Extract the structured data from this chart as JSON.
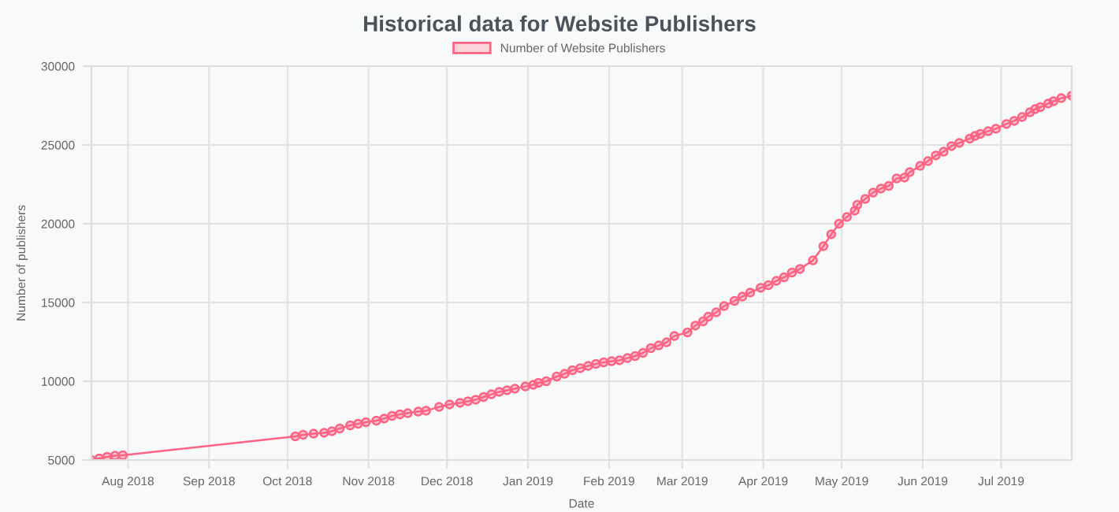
{
  "chart_data": {
    "type": "line",
    "title": "Historical data for Website Publishers",
    "xlabel": "Date",
    "ylabel": "Number of publishers",
    "x": [
      "2018-07-18",
      "2018-07-21",
      "2018-07-24",
      "2018-07-27",
      "2018-07-30",
      "2018-10-04",
      "2018-10-07",
      "2018-10-11",
      "2018-10-15",
      "2018-10-18",
      "2018-10-21",
      "2018-10-25",
      "2018-10-28",
      "2018-10-31",
      "2018-11-04",
      "2018-11-07",
      "2018-11-10",
      "2018-11-13",
      "2018-11-16",
      "2018-11-20",
      "2018-11-23",
      "2018-11-28",
      "2018-12-02",
      "2018-12-06",
      "2018-12-09",
      "2018-12-12",
      "2018-12-15",
      "2018-12-18",
      "2018-12-21",
      "2018-12-24",
      "2018-12-27",
      "2018-12-31",
      "2019-01-03",
      "2019-01-05",
      "2019-01-08",
      "2019-01-12",
      "2019-01-15",
      "2019-01-18",
      "2019-01-21",
      "2019-01-24",
      "2019-01-27",
      "2019-01-30",
      "2019-02-02",
      "2019-02-05",
      "2019-02-08",
      "2019-02-11",
      "2019-02-14",
      "2019-02-17",
      "2019-02-20",
      "2019-02-23",
      "2019-02-26",
      "2019-03-03",
      "2019-03-06",
      "2019-03-09",
      "2019-03-11",
      "2019-03-14",
      "2019-03-17",
      "2019-03-21",
      "2019-03-24",
      "2019-03-27",
      "2019-03-31",
      "2019-04-03",
      "2019-04-06",
      "2019-04-09",
      "2019-04-12",
      "2019-04-15",
      "2019-04-20",
      "2019-04-24",
      "2019-04-27",
      "2019-04-30",
      "2019-05-03",
      "2019-05-06",
      "2019-05-07",
      "2019-05-10",
      "2019-05-13",
      "2019-05-16",
      "2019-05-19",
      "2019-05-22",
      "2019-05-25",
      "2019-05-27",
      "2019-05-31",
      "2019-06-03",
      "2019-06-06",
      "2019-06-09",
      "2019-06-12",
      "2019-06-15",
      "2019-06-19",
      "2019-06-21",
      "2019-06-23",
      "2019-06-26",
      "2019-06-29",
      "2019-07-03",
      "2019-07-06",
      "2019-07-09",
      "2019-07-12",
      "2019-07-14",
      "2019-07-16",
      "2019-07-19",
      "2019-07-21",
      "2019-07-24",
      "2019-07-28"
    ],
    "series": [
      {
        "name": "Number of Website Publishers",
        "color": "#ff6384",
        "values": [
          5000,
          5100,
          5200,
          5270,
          5300,
          6500,
          6600,
          6670,
          6730,
          6830,
          7000,
          7200,
          7300,
          7400,
          7500,
          7630,
          7800,
          7900,
          7970,
          8070,
          8130,
          8370,
          8530,
          8630,
          8730,
          8830,
          9000,
          9170,
          9330,
          9430,
          9530,
          9670,
          9770,
          9900,
          10000,
          10300,
          10470,
          10700,
          10830,
          10970,
          11100,
          11200,
          11270,
          11330,
          11470,
          11600,
          11800,
          12100,
          12270,
          12470,
          12870,
          13100,
          13530,
          13800,
          14100,
          14370,
          14770,
          15100,
          15370,
          15630,
          15930,
          16100,
          16370,
          16600,
          16900,
          17130,
          17670,
          18570,
          19330,
          20000,
          20430,
          20830,
          21200,
          21570,
          21970,
          22230,
          22400,
          22870,
          22930,
          23270,
          23670,
          23970,
          24330,
          24570,
          24930,
          25130,
          25400,
          25570,
          25700,
          25870,
          26030,
          26330,
          26530,
          26770,
          27070,
          27270,
          27400,
          27630,
          27770,
          27970,
          28130
        ]
      }
    ],
    "xlim": [
      "2018-07-18",
      "2019-07-28"
    ],
    "xticks": [
      {
        "value": "2018-08-01",
        "label": "Aug 2018"
      },
      {
        "value": "2018-09-01",
        "label": "Sep 2018"
      },
      {
        "value": "2018-10-01",
        "label": "Oct 2018"
      },
      {
        "value": "2018-11-01",
        "label": "Nov 2018"
      },
      {
        "value": "2018-12-01",
        "label": "Dec 2018"
      },
      {
        "value": "2019-01-01",
        "label": "Jan 2019"
      },
      {
        "value": "2019-02-01",
        "label": "Feb 2019"
      },
      {
        "value": "2019-03-01",
        "label": "Mar 2019"
      },
      {
        "value": "2019-04-01",
        "label": "Apr 2019"
      },
      {
        "value": "2019-05-01",
        "label": "May 2019"
      },
      {
        "value": "2019-06-01",
        "label": "Jun 2019"
      },
      {
        "value": "2019-07-01",
        "label": "Jul 2019"
      }
    ],
    "ylim": [
      5000,
      30000
    ],
    "yticks": [
      5000,
      10000,
      15000,
      20000,
      25000,
      30000
    ],
    "grid": true,
    "legend": "top",
    "marker": "circle",
    "line_style": "solid"
  }
}
